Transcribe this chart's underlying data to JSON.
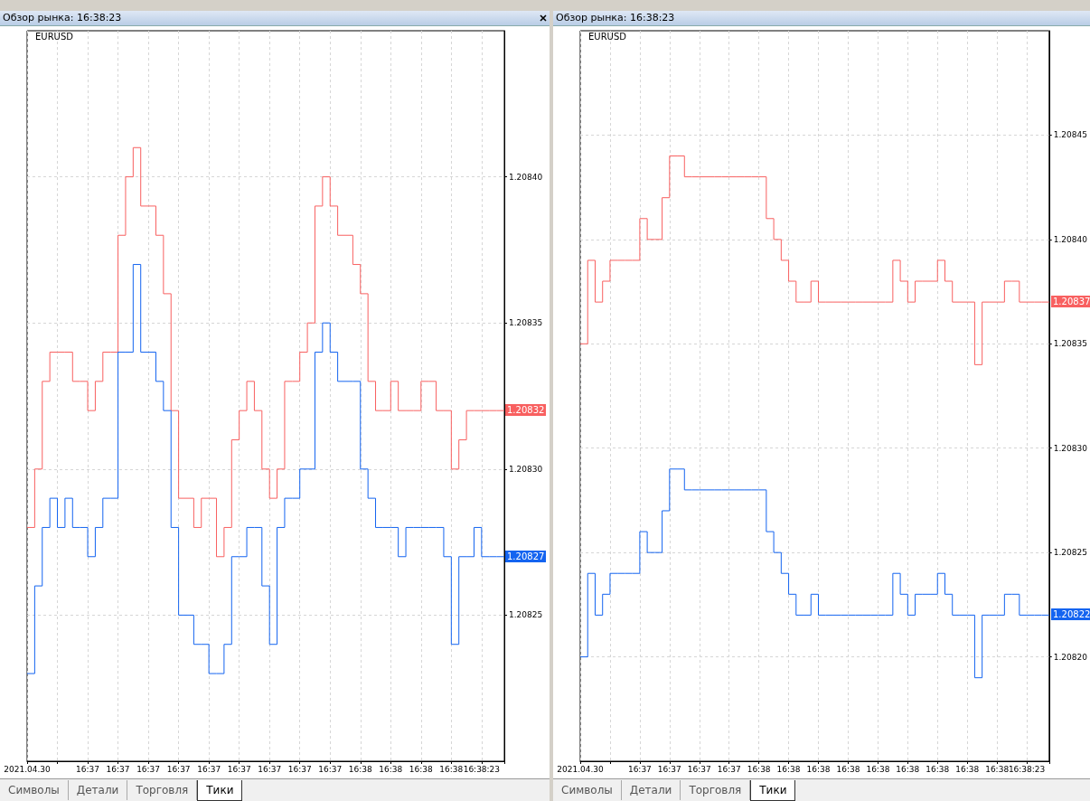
{
  "chart_data": [
    {
      "type": "step",
      "title": "EURUSD",
      "categories": [
        "2021.04.30",
        null,
        null,
        null,
        null,
        null,
        null,
        null,
        "16:37",
        null,
        null,
        null,
        "16:37",
        null,
        null,
        null,
        "16:37",
        null,
        null,
        null,
        "16:37",
        null,
        null,
        null,
        "16:37",
        null,
        null,
        null,
        "16:37",
        null,
        null,
        null,
        "16:37",
        null,
        null,
        null,
        "16:37",
        null,
        null,
        null,
        "16:37",
        null,
        null,
        null,
        "16:38",
        null,
        null,
        null,
        "16:38",
        null,
        null,
        null,
        "16:38",
        null,
        null,
        null,
        "16:38",
        null,
        null,
        null,
        "16:38:23",
        null,
        null,
        null
      ],
      "series": [
        {
          "color": "#f86060",
          "values": [
            1.20828,
            1.2083,
            1.20833,
            1.20834,
            1.20834,
            1.20834,
            1.20833,
            1.20833,
            1.20832,
            1.20833,
            1.20834,
            1.20834,
            1.20838,
            1.2084,
            1.20841,
            1.20839,
            1.20839,
            1.20838,
            1.20836,
            1.20832,
            1.20829,
            1.20829,
            1.20828,
            1.20829,
            1.20829,
            1.20827,
            1.20828,
            1.20831,
            1.20832,
            1.20833,
            1.20832,
            1.2083,
            1.20829,
            1.2083,
            1.20833,
            1.20833,
            1.20834,
            1.20835,
            1.20839,
            1.2084,
            1.20839,
            1.20838,
            1.20838,
            1.20837,
            1.20836,
            1.20833,
            1.20832,
            1.20832,
            1.20833,
            1.20832,
            1.20832,
            1.20832,
            1.20833,
            1.20833,
            1.20832,
            1.20832,
            1.2083,
            1.20831,
            1.20832,
            1.20832,
            1.20832,
            1.20832,
            1.20832,
            1.20832
          ]
        },
        {
          "color": "#1464f0",
          "values": [
            1.20823,
            1.20826,
            1.20828,
            1.20829,
            1.20828,
            1.20829,
            1.20828,
            1.20828,
            1.20827,
            1.20828,
            1.20829,
            1.20829,
            1.20834,
            1.20834,
            1.20837,
            1.20834,
            1.20834,
            1.20833,
            1.20832,
            1.20828,
            1.20825,
            1.20825,
            1.20824,
            1.20824,
            1.20823,
            1.20823,
            1.20824,
            1.20827,
            1.20827,
            1.20828,
            1.20828,
            1.20826,
            1.20824,
            1.20828,
            1.20829,
            1.20829,
            1.2083,
            1.2083,
            1.20834,
            1.20835,
            1.20834,
            1.20833,
            1.20833,
            1.20833,
            1.2083,
            1.20829,
            1.20828,
            1.20828,
            1.20828,
            1.20827,
            1.20828,
            1.20828,
            1.20828,
            1.20828,
            1.20828,
            1.20827,
            1.20824,
            1.20827,
            1.20827,
            1.20828,
            1.20827,
            1.20827,
            1.20827,
            1.20827
          ]
        }
      ],
      "ylim": [
        1.2082,
        1.20845
      ],
      "yticks": [
        {
          "value": 1.20825,
          "label": "1.20825"
        },
        {
          "value": 1.2083,
          "label": "1.20830"
        },
        {
          "value": 1.20835,
          "label": "1.20835"
        },
        {
          "value": 1.2084,
          "label": "1.20840"
        }
      ],
      "grid": true,
      "annotations": [
        "Обзор рынка: 16:38:23",
        "Символы",
        "Детали",
        "Торговля",
        "Тики",
        "1.20832",
        "1.20827"
      ]
    },
    {
      "type": "step",
      "title": "EURUSD",
      "categories": [
        "2021.04.30",
        null,
        null,
        null,
        null,
        null,
        null,
        null,
        "16:37",
        null,
        null,
        null,
        "16:37",
        null,
        null,
        null,
        "16:37",
        null,
        null,
        null,
        "16:37",
        null,
        null,
        null,
        "16:38",
        null,
        null,
        null,
        "16:38",
        null,
        null,
        null,
        "16:38",
        null,
        null,
        null,
        "16:38",
        null,
        null,
        null,
        "16:38",
        null,
        null,
        null,
        "16:38",
        null,
        null,
        null,
        "16:38",
        null,
        null,
        null,
        "16:38",
        null,
        null,
        null,
        "16:38",
        null,
        null,
        null,
        "16:38:23",
        null,
        null,
        null
      ],
      "series": [
        {
          "color": "#f86060",
          "values": [
            1.20835,
            1.20839,
            1.20837,
            1.20838,
            1.20839,
            1.20839,
            1.20839,
            1.20839,
            1.20841,
            1.2084,
            1.2084,
            1.20842,
            1.20844,
            1.20844,
            1.20843,
            1.20843,
            1.20843,
            1.20843,
            1.20843,
            1.20843,
            1.20843,
            1.20843,
            1.20843,
            1.20843,
            1.20843,
            1.20841,
            1.2084,
            1.20839,
            1.20838,
            1.20837,
            1.20837,
            1.20838,
            1.20837,
            1.20837,
            1.20837,
            1.20837,
            1.20837,
            1.20837,
            1.20837,
            1.20837,
            1.20837,
            1.20837,
            1.20839,
            1.20838,
            1.20837,
            1.20838,
            1.20838,
            1.20838,
            1.20839,
            1.20838,
            1.20837,
            1.20837,
            1.20837,
            1.20834,
            1.20837,
            1.20837,
            1.20837,
            1.20838,
            1.20838,
            1.20837,
            1.20837,
            1.20837,
            1.20837,
            1.20837
          ]
        },
        {
          "color": "#1464f0",
          "values": [
            1.2082,
            1.20824,
            1.20822,
            1.20823,
            1.20824,
            1.20824,
            1.20824,
            1.20824,
            1.20826,
            1.20825,
            1.20825,
            1.20827,
            1.20829,
            1.20829,
            1.20828,
            1.20828,
            1.20828,
            1.20828,
            1.20828,
            1.20828,
            1.20828,
            1.20828,
            1.20828,
            1.20828,
            1.20828,
            1.20826,
            1.20825,
            1.20824,
            1.20823,
            1.20822,
            1.20822,
            1.20823,
            1.20822,
            1.20822,
            1.20822,
            1.20822,
            1.20822,
            1.20822,
            1.20822,
            1.20822,
            1.20822,
            1.20822,
            1.20824,
            1.20823,
            1.20822,
            1.20823,
            1.20823,
            1.20823,
            1.20824,
            1.20823,
            1.20822,
            1.20822,
            1.20822,
            1.20819,
            1.20822,
            1.20822,
            1.20822,
            1.20823,
            1.20823,
            1.20822,
            1.20822,
            1.20822,
            1.20822,
            1.20822
          ]
        }
      ],
      "ylim": [
        1.20815,
        1.2085
      ],
      "yticks": [
        {
          "value": 1.2082,
          "label": "1.20820"
        },
        {
          "value": 1.20825,
          "label": "1.20825"
        },
        {
          "value": 1.2083,
          "label": "1.20830"
        },
        {
          "value": 1.20835,
          "label": "1.20835"
        },
        {
          "value": 1.2084,
          "label": "1.20840"
        },
        {
          "value": 1.20845,
          "label": "1.20845"
        }
      ],
      "grid": true,
      "annotations": [
        "Обзор рынка: 16:38:23",
        "Символы",
        "Детали",
        "Торговля",
        "Тики",
        "1.20837",
        "1.20822"
      ]
    }
  ]
}
